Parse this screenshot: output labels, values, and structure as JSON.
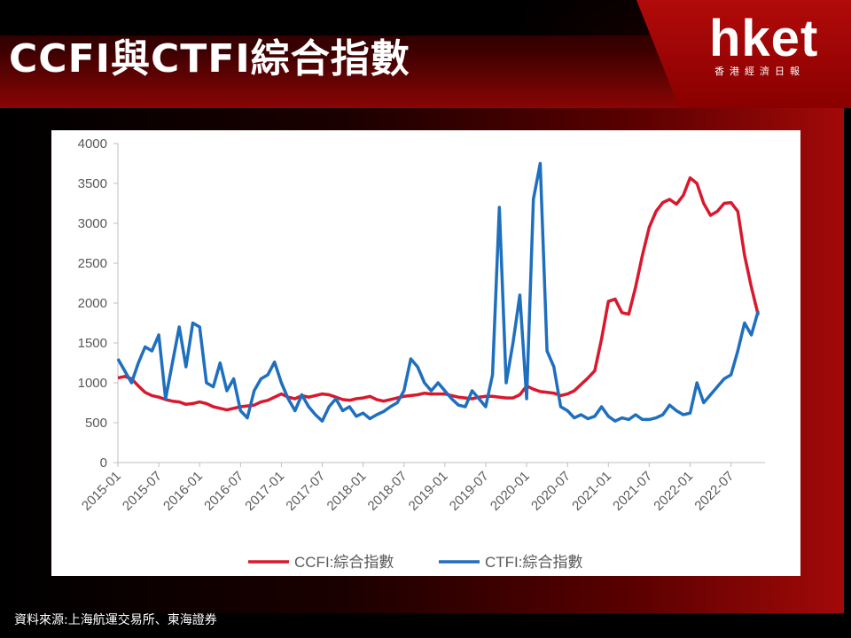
{
  "header": {
    "title": "CCFI與CTFI綜合指數"
  },
  "logo": {
    "brand": "hket",
    "tagline": "香港經濟日報"
  },
  "source": {
    "text": "資料來源:上海航運交易所、東海證券"
  },
  "colors": {
    "ccfi": "#d9182e",
    "ctfi": "#1f6fbf",
    "axis": "#595959"
  },
  "chart_data": {
    "type": "line",
    "title": "",
    "xlabel": "",
    "ylabel": "",
    "ylim": [
      0,
      4000
    ],
    "yticks": [
      "0",
      "500",
      "1000",
      "1500",
      "2000",
      "2500",
      "3000",
      "3500",
      "4000"
    ],
    "xticks": [
      "2015-01",
      "2015-07",
      "2016-01",
      "2016-07",
      "2017-01",
      "2017-07",
      "2018-01",
      "2018-07",
      "2019-01",
      "2019-07",
      "2020-01",
      "2020-07",
      "2021-01",
      "2021-07",
      "2022-01",
      "2022-07"
    ],
    "xlim": [
      "2015-01",
      "2022-12"
    ],
    "grid": false,
    "legend": "bottom",
    "series": [
      {
        "name": "CCFI:綜合指數",
        "color": "#d9182e",
        "points": [
          [
            "2015-01",
            1060
          ],
          [
            "2015-02",
            1080
          ],
          [
            "2015-03",
            1050
          ],
          [
            "2015-04",
            960
          ],
          [
            "2015-05",
            880
          ],
          [
            "2015-06",
            840
          ],
          [
            "2015-07",
            820
          ],
          [
            "2015-08",
            790
          ],
          [
            "2015-09",
            770
          ],
          [
            "2015-10",
            760
          ],
          [
            "2015-11",
            730
          ],
          [
            "2015-12",
            740
          ],
          [
            "2016-01",
            760
          ],
          [
            "2016-02",
            740
          ],
          [
            "2016-03",
            700
          ],
          [
            "2016-04",
            680
          ],
          [
            "2016-05",
            660
          ],
          [
            "2016-06",
            680
          ],
          [
            "2016-07",
            700
          ],
          [
            "2016-08",
            710
          ],
          [
            "2016-09",
            720
          ],
          [
            "2016-10",
            760
          ],
          [
            "2016-11",
            780
          ],
          [
            "2016-12",
            820
          ],
          [
            "2017-01",
            860
          ],
          [
            "2017-02",
            820
          ],
          [
            "2017-03",
            800
          ],
          [
            "2017-04",
            840
          ],
          [
            "2017-05",
            820
          ],
          [
            "2017-06",
            840
          ],
          [
            "2017-07",
            860
          ],
          [
            "2017-08",
            850
          ],
          [
            "2017-09",
            820
          ],
          [
            "2017-10",
            790
          ],
          [
            "2017-11",
            780
          ],
          [
            "2017-12",
            800
          ],
          [
            "2018-01",
            810
          ],
          [
            "2018-02",
            830
          ],
          [
            "2018-03",
            790
          ],
          [
            "2018-04",
            770
          ],
          [
            "2018-05",
            790
          ],
          [
            "2018-06",
            810
          ],
          [
            "2018-07",
            830
          ],
          [
            "2018-08",
            840
          ],
          [
            "2018-09",
            850
          ],
          [
            "2018-10",
            870
          ],
          [
            "2018-11",
            860
          ],
          [
            "2018-12",
            860
          ],
          [
            "2019-01",
            860
          ],
          [
            "2019-02",
            840
          ],
          [
            "2019-03",
            820
          ],
          [
            "2019-04",
            810
          ],
          [
            "2019-05",
            800
          ],
          [
            "2019-06",
            820
          ],
          [
            "2019-07",
            830
          ],
          [
            "2019-08",
            830
          ],
          [
            "2019-09",
            820
          ],
          [
            "2019-10",
            810
          ],
          [
            "2019-11",
            810
          ],
          [
            "2019-12",
            850
          ],
          [
            "2020-01",
            960
          ],
          [
            "2020-02",
            920
          ],
          [
            "2020-03",
            890
          ],
          [
            "2020-04",
            880
          ],
          [
            "2020-05",
            870
          ],
          [
            "2020-06",
            840
          ],
          [
            "2020-07",
            860
          ],
          [
            "2020-08",
            900
          ],
          [
            "2020-09",
            980
          ],
          [
            "2020-10",
            1060
          ],
          [
            "2020-11",
            1150
          ],
          [
            "2020-12",
            1550
          ],
          [
            "2021-01",
            2020
          ],
          [
            "2021-02",
            2050
          ],
          [
            "2021-03",
            1880
          ],
          [
            "2021-04",
            1860
          ],
          [
            "2021-05",
            2200
          ],
          [
            "2021-06",
            2600
          ],
          [
            "2021-07",
            2950
          ],
          [
            "2021-08",
            3150
          ],
          [
            "2021-09",
            3260
          ],
          [
            "2021-10",
            3300
          ],
          [
            "2021-11",
            3240
          ],
          [
            "2021-12",
            3350
          ],
          [
            "2022-01",
            3570
          ],
          [
            "2022-02",
            3500
          ],
          [
            "2022-03",
            3250
          ],
          [
            "2022-04",
            3100
          ],
          [
            "2022-05",
            3150
          ],
          [
            "2022-06",
            3250
          ],
          [
            "2022-07",
            3260
          ],
          [
            "2022-08",
            3150
          ],
          [
            "2022-09",
            2600
          ],
          [
            "2022-10",
            2200
          ],
          [
            "2022-11",
            1850
          ]
        ]
      },
      {
        "name": "CTFI:綜合指數",
        "color": "#1f6fbf",
        "points": [
          [
            "2015-01",
            1300
          ],
          [
            "2015-02",
            1150
          ],
          [
            "2015-03",
            1000
          ],
          [
            "2015-04",
            1250
          ],
          [
            "2015-05",
            1450
          ],
          [
            "2015-06",
            1400
          ],
          [
            "2015-07",
            1600
          ],
          [
            "2015-08",
            800
          ],
          [
            "2015-09",
            1250
          ],
          [
            "2015-10",
            1700
          ],
          [
            "2015-11",
            1200
          ],
          [
            "2015-12",
            1750
          ],
          [
            "2016-01",
            1700
          ],
          [
            "2016-02",
            1000
          ],
          [
            "2016-03",
            950
          ],
          [
            "2016-04",
            1250
          ],
          [
            "2016-05",
            900
          ],
          [
            "2016-06",
            1050
          ],
          [
            "2016-07",
            650
          ],
          [
            "2016-08",
            560
          ],
          [
            "2016-09",
            900
          ],
          [
            "2016-10",
            1050
          ],
          [
            "2016-11",
            1100
          ],
          [
            "2016-12",
            1260
          ],
          [
            "2017-01",
            1000
          ],
          [
            "2017-02",
            800
          ],
          [
            "2017-03",
            650
          ],
          [
            "2017-04",
            850
          ],
          [
            "2017-05",
            700
          ],
          [
            "2017-06",
            600
          ],
          [
            "2017-07",
            520
          ],
          [
            "2017-08",
            700
          ],
          [
            "2017-09",
            800
          ],
          [
            "2017-10",
            650
          ],
          [
            "2017-11",
            700
          ],
          [
            "2017-12",
            580
          ],
          [
            "2018-01",
            620
          ],
          [
            "2018-02",
            550
          ],
          [
            "2018-03",
            600
          ],
          [
            "2018-04",
            640
          ],
          [
            "2018-05",
            700
          ],
          [
            "2018-06",
            750
          ],
          [
            "2018-07",
            900
          ],
          [
            "2018-08",
            1300
          ],
          [
            "2018-09",
            1200
          ],
          [
            "2018-10",
            1000
          ],
          [
            "2018-11",
            900
          ],
          [
            "2018-12",
            1000
          ],
          [
            "2019-01",
            900
          ],
          [
            "2019-02",
            800
          ],
          [
            "2019-03",
            720
          ],
          [
            "2019-04",
            700
          ],
          [
            "2019-05",
            900
          ],
          [
            "2019-06",
            800
          ],
          [
            "2019-07",
            700
          ],
          [
            "2019-08",
            1100
          ],
          [
            "2019-09",
            3200
          ],
          [
            "2019-10",
            1000
          ],
          [
            "2019-11",
            1500
          ],
          [
            "2019-12",
            2100
          ],
          [
            "2020-01",
            800
          ],
          [
            "2020-02",
            3300
          ],
          [
            "2020-03",
            3750
          ],
          [
            "2020-04",
            1400
          ],
          [
            "2020-05",
            1200
          ],
          [
            "2020-06",
            700
          ],
          [
            "2020-07",
            650
          ],
          [
            "2020-08",
            560
          ],
          [
            "2020-09",
            600
          ],
          [
            "2020-10",
            550
          ],
          [
            "2020-11",
            580
          ],
          [
            "2020-12",
            700
          ],
          [
            "2021-01",
            580
          ],
          [
            "2021-02",
            520
          ],
          [
            "2021-03",
            560
          ],
          [
            "2021-04",
            540
          ],
          [
            "2021-05",
            600
          ],
          [
            "2021-06",
            540
          ],
          [
            "2021-07",
            540
          ],
          [
            "2021-08",
            560
          ],
          [
            "2021-09",
            600
          ],
          [
            "2021-10",
            720
          ],
          [
            "2021-11",
            650
          ],
          [
            "2021-12",
            600
          ],
          [
            "2022-01",
            620
          ],
          [
            "2022-02",
            1000
          ],
          [
            "2022-03",
            750
          ],
          [
            "2022-04",
            850
          ],
          [
            "2022-05",
            950
          ],
          [
            "2022-06",
            1050
          ],
          [
            "2022-07",
            1100
          ],
          [
            "2022-08",
            1400
          ],
          [
            "2022-09",
            1750
          ],
          [
            "2022-10",
            1600
          ],
          [
            "2022-11",
            1900
          ]
        ]
      }
    ]
  }
}
